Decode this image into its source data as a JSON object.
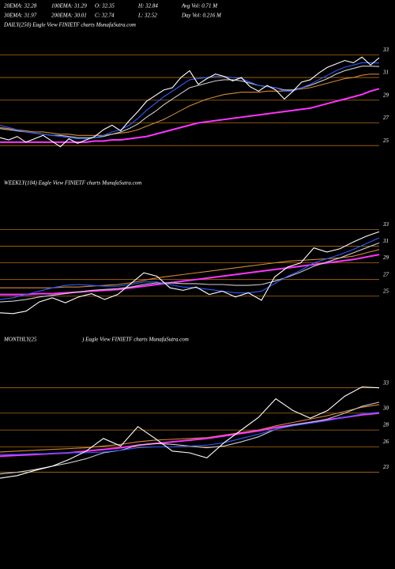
{
  "header": {
    "stats": [
      [
        "20EMA: 32.28",
        "100EMA: 31.29",
        "O: 32.35",
        "H: 32.84",
        "Avg Vol: 0.71 M"
      ],
      [
        "30EMA: 31.97",
        "200EMA: 30.01",
        "C: 32.74",
        "L: 32.52",
        "Day Vol: 0.216 M"
      ]
    ]
  },
  "chart_data": [
    {
      "type": "line",
      "title": "DAILY(250) Eagle  View  FINIETF charts MunafaSutra.com",
      "ylim": [
        23.9,
        34
      ],
      "yticks": [
        25,
        27,
        29,
        31,
        33
      ],
      "grid": true,
      "grid_color": "#b36b12",
      "series": [
        {
          "color": "#d4893a",
          "values": [
            26.6,
            26.5,
            26.4,
            26.3,
            26.2,
            26.2,
            26.1,
            26.0,
            26.0,
            25.9,
            25.9,
            25.9,
            25.9,
            26.0,
            26.1,
            26.2,
            26.4,
            26.7,
            27.0,
            27.3,
            27.7,
            28.1,
            28.5,
            28.8,
            29.1,
            29.3,
            29.5,
            29.6,
            29.7,
            29.7,
            29.7,
            29.8,
            29.8,
            29.8,
            29.9,
            30.0,
            30.1,
            30.3,
            30.5,
            30.7,
            30.9,
            31.0,
            31.2,
            31.3,
            31.29
          ]
        },
        {
          "color": "#ff33ff",
          "values": [
            25.3,
            25.3,
            25.3,
            25.3,
            25.3,
            25.3,
            25.3,
            25.3,
            25.3,
            25.3,
            25.3,
            25.4,
            25.4,
            25.5,
            25.5,
            25.6,
            25.7,
            25.8,
            26.0,
            26.2,
            26.4,
            26.6,
            26.8,
            27.0,
            27.1,
            27.2,
            27.3,
            27.4,
            27.5,
            27.6,
            27.7,
            27.8,
            27.9,
            28.0,
            28.1,
            28.2,
            28.3,
            28.5,
            28.7,
            28.9,
            29.1,
            29.3,
            29.5,
            29.8,
            30.01
          ]
        },
        {
          "color": "#cccccc",
          "values": [
            26.5,
            26.4,
            26.3,
            26.2,
            26.1,
            26.0,
            25.9,
            25.9,
            25.8,
            25.7,
            25.7,
            25.7,
            25.8,
            26.0,
            26.2,
            26.5,
            26.9,
            27.5,
            28.0,
            28.6,
            29.1,
            29.6,
            30.1,
            30.3,
            30.5,
            30.7,
            30.8,
            30.8,
            30.7,
            30.5,
            30.3,
            30.2,
            30.1,
            29.9,
            29.9,
            30.1,
            30.3,
            30.6,
            30.9,
            31.3,
            31.6,
            31.8,
            32.0,
            32.0,
            31.97
          ]
        },
        {
          "color": "#2f5bff",
          "values": [
            26.8,
            26.6,
            26.4,
            26.2,
            26.1,
            26.0,
            25.9,
            25.8,
            25.7,
            25.6,
            25.6,
            25.7,
            25.9,
            26.2,
            26.4,
            26.8,
            27.4,
            28.1,
            28.7,
            29.3,
            29.8,
            30.3,
            30.8,
            30.9,
            31.0,
            31.1,
            31.1,
            31.0,
            30.9,
            30.6,
            30.3,
            30.2,
            30.1,
            29.8,
            29.8,
            30.1,
            30.4,
            30.8,
            31.2,
            31.6,
            31.9,
            32.1,
            32.3,
            32.3,
            32.28
          ]
        },
        {
          "color": "#ffffff",
          "values": [
            25.7,
            25.5,
            25.8,
            25.3,
            25.6,
            25.9,
            25.4,
            24.9,
            25.6,
            25.2,
            25.5,
            25.8,
            26.4,
            26.8,
            26.3,
            27.2,
            28.0,
            28.9,
            29.4,
            29.9,
            30.1,
            31.0,
            31.6,
            30.4,
            30.9,
            31.3,
            31.1,
            30.7,
            31.0,
            30.2,
            29.8,
            30.3,
            29.9,
            29.1,
            29.8,
            30.6,
            30.8,
            31.4,
            31.9,
            32.2,
            32.5,
            32.3,
            32.8,
            32.1,
            32.74
          ]
        }
      ]
    },
    {
      "type": "line",
      "title": "WEEKLY(104) Eagle  View  FINIETF charts MunafaSutra.com",
      "ylim": [
        22.6,
        34
      ],
      "yticks": [
        25,
        27,
        29,
        31,
        33
      ],
      "grid": true,
      "grid_color": "#b36b12",
      "series": [
        {
          "color": "#d4893a",
          "values": [
            26.0,
            26.0,
            26.0,
            26.0,
            26.0,
            26.1,
            26.1,
            26.2,
            26.3,
            26.4,
            26.6,
            26.9,
            27.2,
            27.4,
            27.6,
            27.8,
            28.0,
            28.2,
            28.4,
            28.6,
            28.8,
            29.0,
            29.2,
            29.3,
            29.4,
            29.5,
            29.6,
            29.8,
            30.2,
            30.6
          ]
        },
        {
          "color": "#ff33ff",
          "values": [
            25.2,
            25.2,
            25.2,
            25.3,
            25.3,
            25.4,
            25.5,
            25.6,
            25.7,
            25.8,
            26.0,
            26.2,
            26.4,
            26.6,
            26.8,
            27.0,
            27.2,
            27.4,
            27.6,
            27.8,
            28.0,
            28.2,
            28.4,
            28.6,
            28.8,
            29.0,
            29.2,
            29.4,
            29.7,
            30.0
          ]
        },
        {
          "color": "#cccccc",
          "values": [
            24.3,
            24.4,
            24.6,
            24.9,
            25.1,
            25.3,
            25.5,
            25.7,
            25.8,
            25.9,
            26.1,
            26.4,
            26.6,
            26.6,
            26.5,
            26.5,
            26.4,
            26.4,
            26.3,
            26.3,
            26.4,
            26.8,
            27.3,
            27.9,
            28.6,
            29.1,
            29.6,
            30.2,
            30.8,
            31.4
          ]
        },
        {
          "color": "#2f5bff",
          "values": [
            24.6,
            24.8,
            25.2,
            25.6,
            26.0,
            26.3,
            26.4,
            26.3,
            26.2,
            26.2,
            26.4,
            26.7,
            26.7,
            26.4,
            26.1,
            26.0,
            25.8,
            25.6,
            25.4,
            25.4,
            25.6,
            26.5,
            27.4,
            28.1,
            29.0,
            29.5,
            30.0,
            30.6,
            31.3,
            32.0
          ]
        },
        {
          "color": "#ffffff",
          "values": [
            23.0,
            22.9,
            23.2,
            24.3,
            24.8,
            24.2,
            24.9,
            25.3,
            24.6,
            25.2,
            26.5,
            27.8,
            27.4,
            26.0,
            25.7,
            26.1,
            25.2,
            25.6,
            24.9,
            25.4,
            24.5,
            27.3,
            28.5,
            29.0,
            30.8,
            30.3,
            30.7,
            31.5,
            32.2,
            32.74
          ]
        }
      ]
    },
    {
      "type": "line",
      "title": "MONTHLY(25",
      "title_suffix": ") Eagle  View  FINIETF charts MunafaSutra.com",
      "ylim": [
        20.9,
        34
      ],
      "yticks": [
        23,
        26,
        28,
        30,
        33
      ],
      "grid": true,
      "grid_color": "#b36b12",
      "series": [
        {
          "color": "#d4893a",
          "values": [
            25.4,
            25.5,
            25.6,
            25.7,
            25.8,
            25.9,
            26.1,
            26.3,
            26.6,
            26.8,
            26.9,
            27.0,
            27.1,
            27.4,
            27.7,
            28.0,
            28.5,
            28.9,
            29.3,
            29.7,
            30.2,
            30.7,
            31.0
          ]
        },
        {
          "color": "#ff33ff",
          "values": [
            24.9,
            25.0,
            25.1,
            25.2,
            25.3,
            25.5,
            25.7,
            25.9,
            26.2,
            26.4,
            26.6,
            26.8,
            27.0,
            27.3,
            27.6,
            27.9,
            28.3,
            28.6,
            28.9,
            29.2,
            29.5,
            29.8,
            30.0
          ]
        },
        {
          "color": "#cccccc",
          "values": [
            22.8,
            23.0,
            23.3,
            23.7,
            24.1,
            24.6,
            25.3,
            25.6,
            26.2,
            26.4,
            26.3,
            26.1,
            25.9,
            26.1,
            26.6,
            27.2,
            28.1,
            28.6,
            28.9,
            29.3,
            30.0,
            30.8,
            31.3
          ]
        },
        {
          "color": "#2f5bff",
          "values": [
            25.1,
            25.1,
            25.2,
            25.2,
            25.3,
            25.3,
            25.4,
            25.6,
            25.9,
            26.0,
            26.0,
            26.1,
            26.2,
            26.5,
            27.0,
            27.5,
            28.1,
            28.5,
            28.8,
            29.1,
            29.5,
            29.9,
            30.1
          ]
        },
        {
          "color": "#ffffff",
          "values": [
            22.3,
            22.6,
            23.2,
            23.7,
            24.5,
            25.5,
            27.0,
            26.1,
            28.4,
            27.0,
            25.5,
            25.3,
            24.7,
            26.5,
            28.0,
            29.5,
            31.7,
            30.3,
            29.4,
            30.3,
            32.0,
            33.1,
            33.0
          ]
        }
      ]
    }
  ]
}
